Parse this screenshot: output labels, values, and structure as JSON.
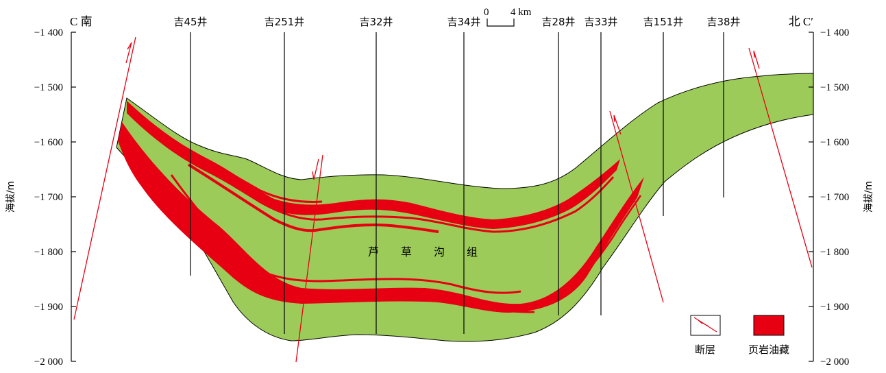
{
  "axis": {
    "left_title": "海拔/m",
    "right_title": "海拔/m",
    "tick_labels": [
      "−1 400",
      "−1 500",
      "−1 600",
      "−1 700",
      "−1 800",
      "−1 900",
      "−2 000"
    ]
  },
  "corners": {
    "left": "C 南",
    "right": "北 C′"
  },
  "scale_bar": {
    "start": "0",
    "end": "4 km"
  },
  "wells": [
    "吉45井",
    "吉251井",
    "吉32井",
    "吉34井",
    "吉28井",
    "吉33井",
    "吉151井",
    "吉38井"
  ],
  "formation_label": "芦　　草　　沟　　组",
  "legend": {
    "fault": "断层",
    "shale_oil": "页岩油藏"
  },
  "colors": {
    "formation": "#9dcb5a",
    "oil": "#e60012",
    "fault": "#e60012"
  }
}
